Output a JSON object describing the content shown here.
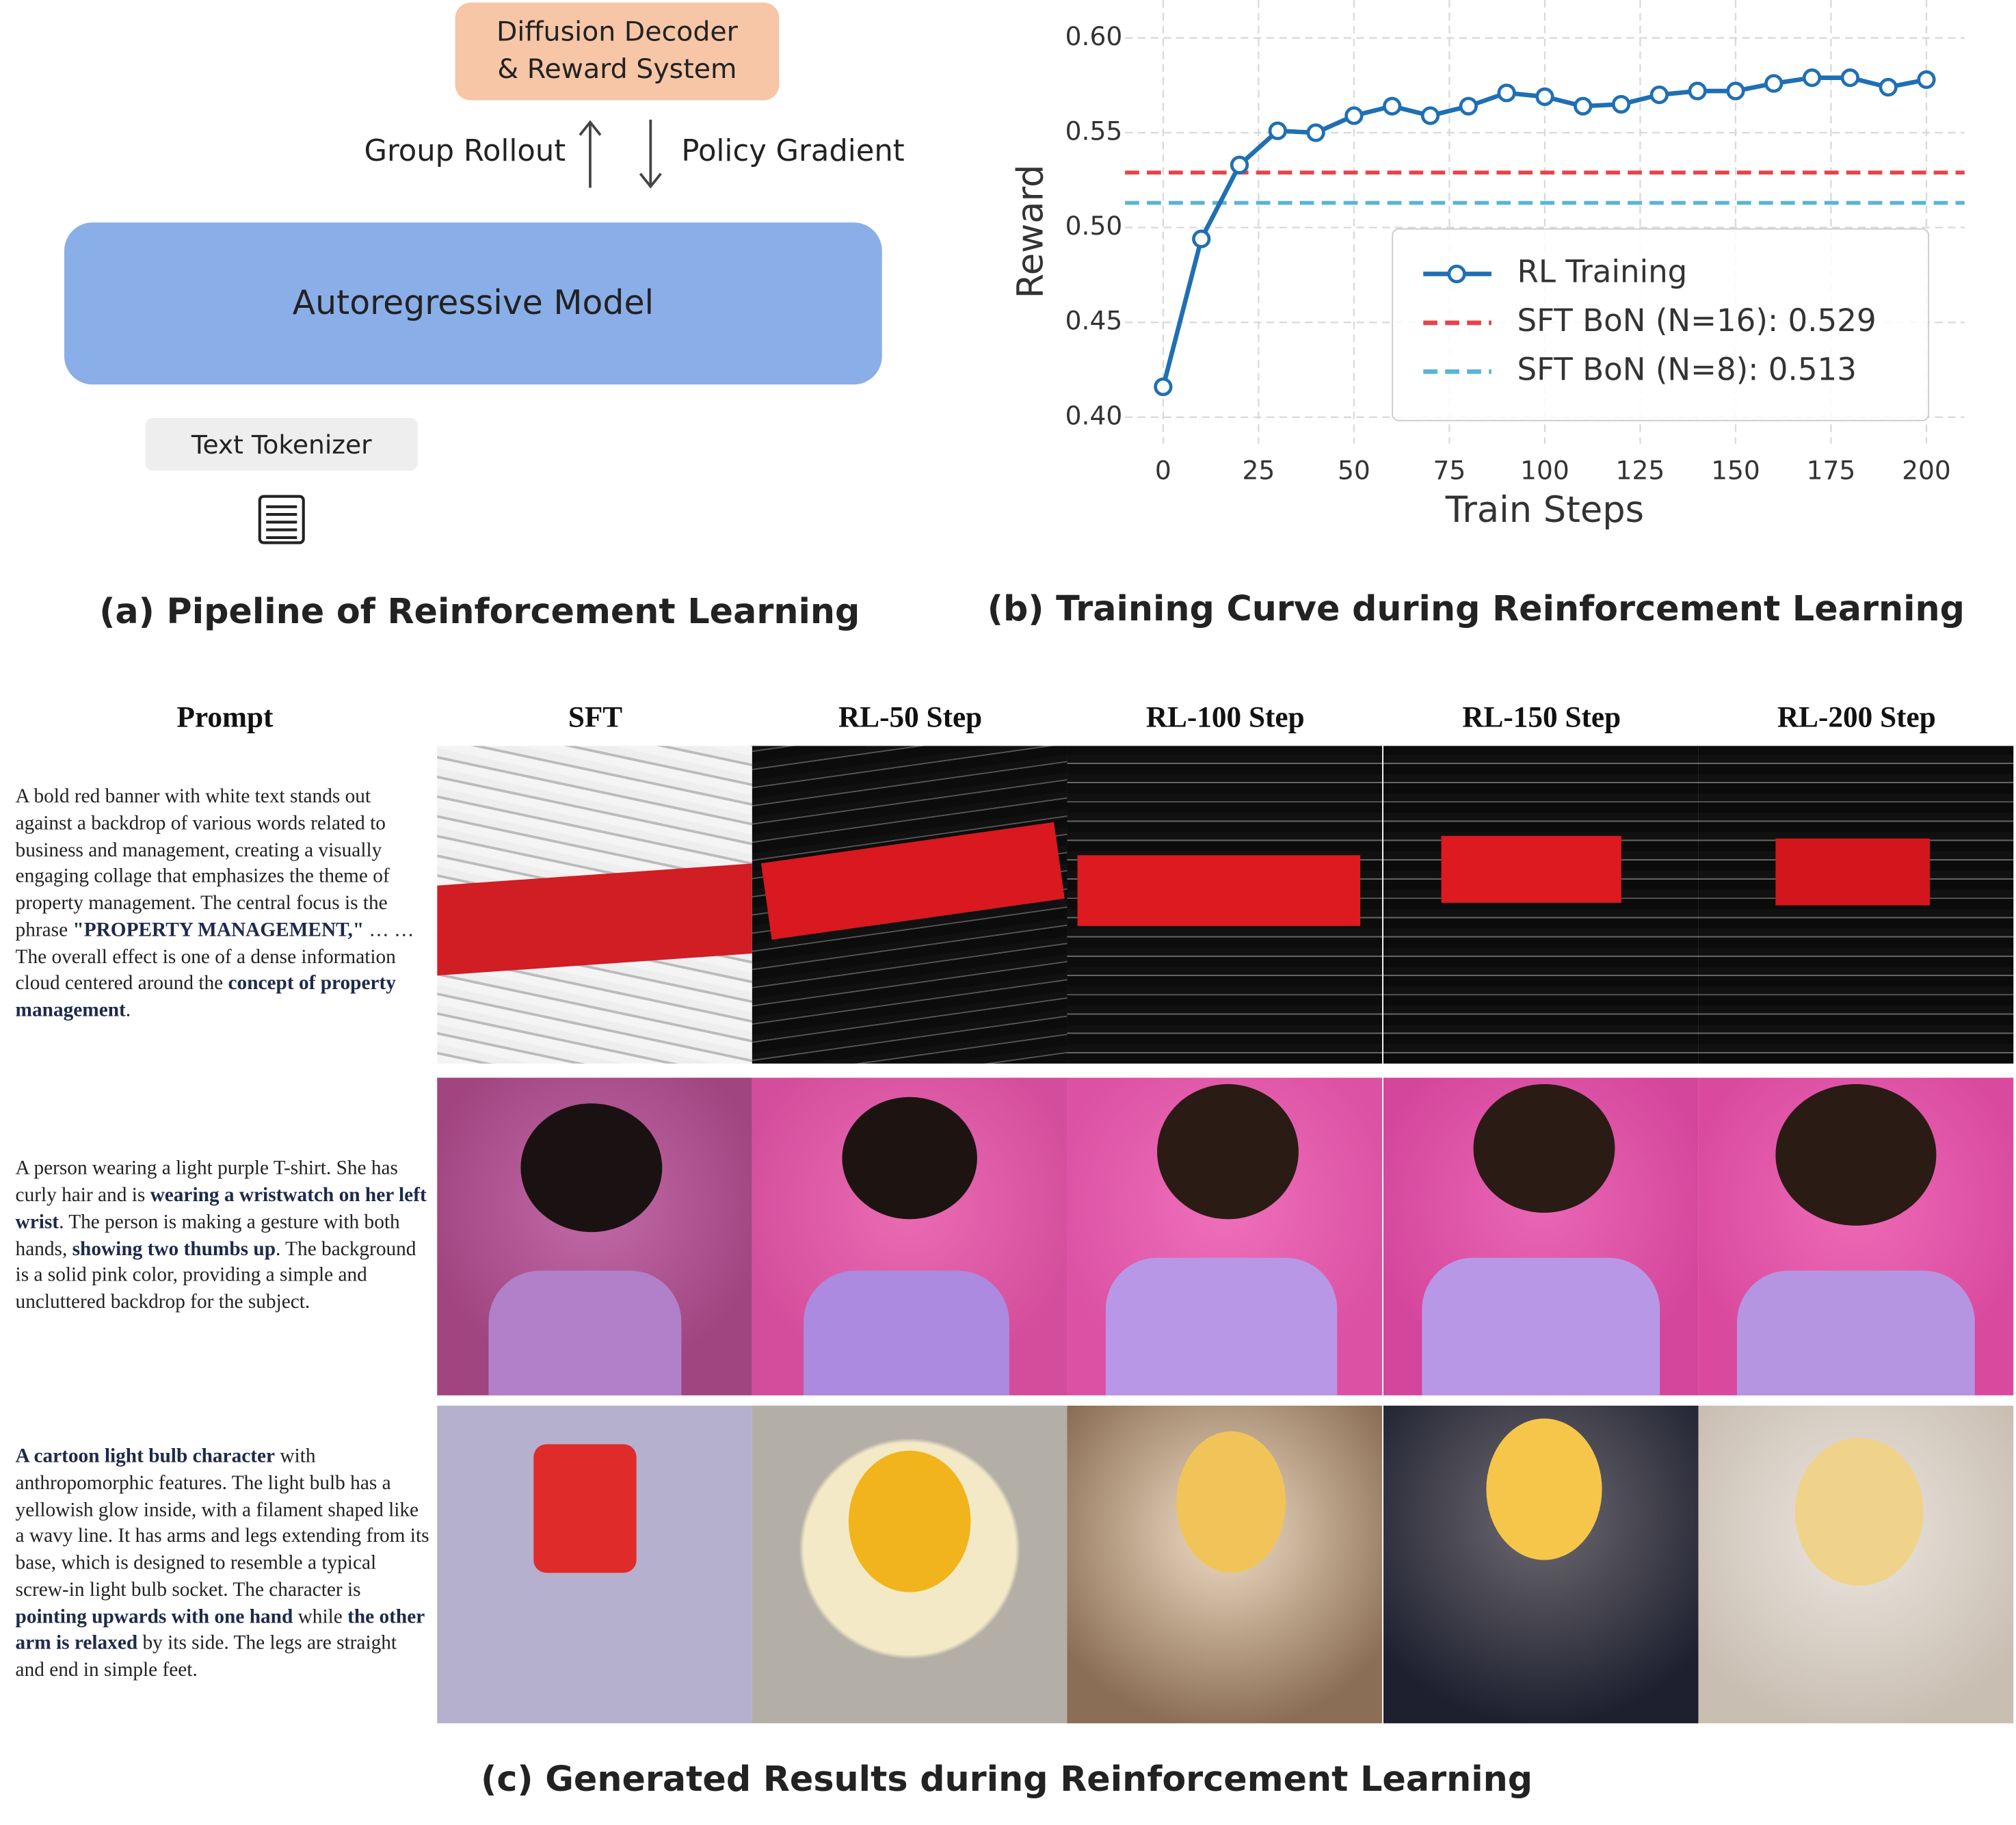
{
  "pipeline": {
    "decoder_lines": [
      "Diffusion Decoder",
      "& Reward System"
    ],
    "up_label": "Group Rollout",
    "down_label": "Policy Gradient",
    "model": "Autoregressive Model",
    "tokenizer": "Text Tokenizer"
  },
  "captions": {
    "a": "(a) Pipeline of Reinforcement Learning",
    "b": "(b) Training Curve during Reinforcement Learning",
    "c": "(c) Generated Results during Reinforcement Learning"
  },
  "chart_data": {
    "type": "line",
    "x_label": "Train Steps",
    "y_label": "Reward",
    "x": [
      0,
      10,
      20,
      30,
      40,
      50,
      60,
      70,
      80,
      90,
      100,
      110,
      120,
      130,
      140,
      150,
      160,
      170,
      180,
      190,
      200
    ],
    "series": [
      {
        "name": "RL Training",
        "color": "#1f6fb4",
        "values": [
          0.416,
          0.494,
          0.533,
          0.551,
          0.55,
          0.559,
          0.564,
          0.559,
          0.564,
          0.571,
          0.569,
          0.564,
          0.565,
          0.57,
          0.572,
          0.572,
          0.576,
          0.579,
          0.579,
          0.574,
          0.578
        ]
      }
    ],
    "hlines": [
      {
        "name": "SFT BoN (N=16): 0.529",
        "color": "#e8434a",
        "value": 0.529
      },
      {
        "name": "SFT BoN (N=8): 0.513",
        "color": "#5ab4d6",
        "value": 0.513
      }
    ],
    "xlim": [
      -10,
      210
    ],
    "ylim": [
      0.386,
      0.62
    ],
    "xticks": [
      0,
      25,
      50,
      75,
      100,
      125,
      150,
      175,
      200
    ],
    "yticks": [
      {
        "value": 0.4,
        "label": "0.40"
      },
      {
        "value": 0.45,
        "label": "0.45"
      },
      {
        "value": 0.5,
        "label": "0.50"
      },
      {
        "value": 0.55,
        "label": "0.55"
      },
      {
        "value": 0.6,
        "label": "0.60"
      }
    ],
    "grid": true,
    "legend": "lower right"
  },
  "results": {
    "headers": [
      "Prompt",
      "SFT",
      "RL-50 Step",
      "RL-100 Step",
      "RL-150 Step",
      "RL-200 Step"
    ],
    "prompts": [
      [
        [
          {
            "text": "A bold red banner with white text stands out against a backdrop of various words related to business and management, creating a visually engaging collage that emphasizes the theme of property management. The central focus is the phrase ",
            "bold": false
          },
          {
            "text": "\"PROPERTY MANAGEMENT,\"",
            "bold": true
          },
          {
            "text": " … …",
            "bold": false
          }
        ],
        [
          {
            "text": "The overall effect is one of a dense information cloud centered around the ",
            "bold": false
          },
          {
            "text": "concept of property management",
            "bold": true
          },
          {
            "text": ".",
            "bold": false
          }
        ]
      ],
      [
        [
          {
            "text": "A person wearing a light purple T-shirt. She has curly hair and is ",
            "bold": false
          },
          {
            "text": "wearing a wristwatch on her left wrist",
            "bold": true
          },
          {
            "text": ". The person is making a gesture with both hands, ",
            "bold": false
          },
          {
            "text": "showing two thumbs up",
            "bold": true
          },
          {
            "text": ". The background is a solid pink color, providing a simple and uncluttered backdrop for the subject.",
            "bold": false
          }
        ]
      ],
      [
        [
          {
            "text": "A cartoon light bulb character",
            "bold": true
          },
          {
            "text": " with anthropomorphic features. The light bulb has a yellowish glow inside, with a filament shaped like a wavy line. It has arms and legs extending from its base, which is designed to resemble a typical screw-in light bulb socket. The character is ",
            "bold": false
          },
          {
            "text": "pointing upwards with one hand",
            "bold": true
          },
          {
            "text": " while ",
            "bold": false
          },
          {
            "text": "the other arm is relaxed",
            "bold": true
          },
          {
            "text": " by its side. The legs are straight and end in simple feet.",
            "bold": false
          }
        ]
      ]
    ]
  }
}
